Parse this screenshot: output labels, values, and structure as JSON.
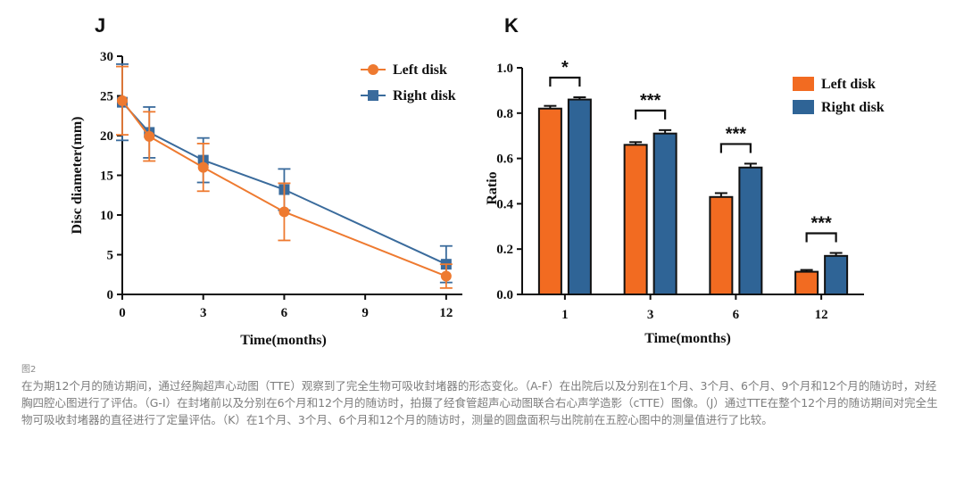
{
  "panels": {
    "j_letter": "J",
    "k_letter": "K"
  },
  "colors": {
    "left": "#EE7A30",
    "right": "#3A6B9C",
    "bar_left": "#F26B21",
    "bar_right": "#2F6496",
    "axis": "#111111"
  },
  "chart_data": [
    {
      "type": "line",
      "panel": "J",
      "title": "",
      "xlabel": "Time(months)",
      "ylabel": "Disc diameter(mm)",
      "xlim": [
        0,
        12.6
      ],
      "ylim": [
        0,
        30
      ],
      "xticks": [
        0,
        3,
        6,
        9,
        12
      ],
      "yticks": [
        0,
        5,
        10,
        15,
        20,
        25,
        30
      ],
      "x": [
        0,
        1,
        3,
        6,
        12
      ],
      "series": [
        {
          "name": "Left disk",
          "marker": "circle",
          "values": [
            24.4,
            19.9,
            16.0,
            10.4,
            2.3
          ],
          "error": [
            4.3,
            3.1,
            3.0,
            3.6,
            1.5
          ]
        },
        {
          "name": "Right disk",
          "marker": "square",
          "values": [
            24.2,
            20.4,
            16.9,
            13.2,
            3.8
          ],
          "error": [
            4.8,
            3.2,
            2.8,
            2.6,
            2.3
          ]
        }
      ],
      "legend": "top-right",
      "grid": false
    },
    {
      "type": "bar",
      "panel": "K",
      "title": "",
      "xlabel": "Time(months)",
      "ylabel": "Ratio",
      "ylim": [
        0,
        1.0
      ],
      "yticks": [
        "0.0",
        "0.2",
        "0.4",
        "0.6",
        "0.8",
        "1.0"
      ],
      "categories": [
        "1",
        "3",
        "6",
        "12"
      ],
      "series": [
        {
          "name": "Left disk",
          "values": [
            0.82,
            0.66,
            0.43,
            0.1
          ],
          "error": [
            0.012,
            0.012,
            0.017,
            0.008
          ]
        },
        {
          "name": "Right disk",
          "values": [
            0.86,
            0.71,
            0.56,
            0.17
          ],
          "error": [
            0.01,
            0.015,
            0.017,
            0.013
          ]
        }
      ],
      "significance": [
        "*",
        "***",
        "***",
        "***"
      ],
      "legend": "top-right",
      "grid": false
    }
  ],
  "caption": {
    "label": "图2",
    "text": "在为期12个月的随访期间，通过经胸超声心动图（TTE）观察到了完全生物可吸收封堵器的形态变化。（A-F）在出院后以及分别在1个月、3个月、6个月、9个月和12个月的随访时，对经胸四腔心图进行了评估。（G-I）在封堵前以及分别在6个月和12个月的随访时，拍摄了经食管超声心动图联合右心声学造影（cTTE）图像。（J）通过TTE在整个12个月的随访期间对完全生物可吸收封堵器的直径进行了定量评估。（K）在1个月、3个月、6个月和12个月的随访时，测量的圆盘面积与出院前在五腔心图中的测量值进行了比较。"
  }
}
